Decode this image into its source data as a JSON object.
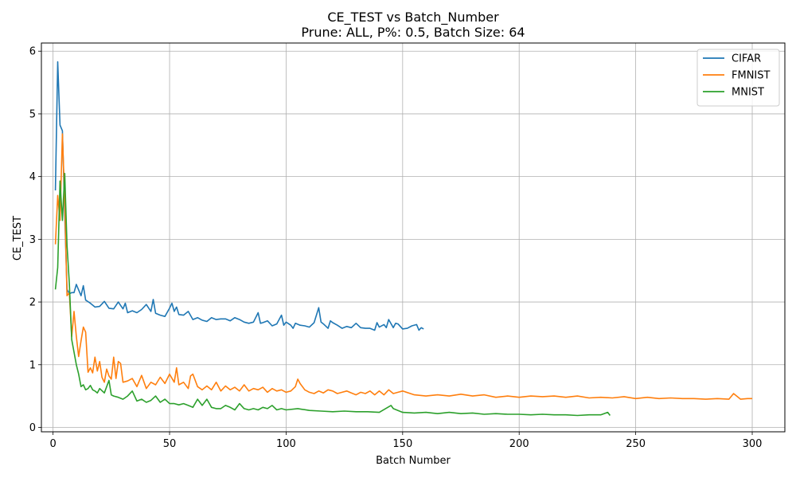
{
  "chart_data": {
    "type": "line",
    "title": "CE_TEST vs Batch_Number",
    "subtitle": "Prune: ALL, P%: 0.5, Batch Size: 64",
    "xlabel": "Batch Number",
    "ylabel": "CE_TEST",
    "xlim": [
      -5,
      314
    ],
    "ylim": [
      -0.07,
      6.13
    ],
    "xticks": [
      0,
      50,
      100,
      150,
      200,
      250,
      300
    ],
    "yticks": [
      0,
      1,
      2,
      3,
      4,
      5,
      6
    ],
    "grid": true,
    "legend_position": "top-right",
    "series": [
      {
        "name": "CIFAR",
        "color": "#1f77b4",
        "x": [
          1,
          2,
          3,
          4,
          5,
          6,
          7,
          8,
          9,
          10,
          12,
          13,
          14,
          16,
          18,
          20,
          22,
          24,
          26,
          28,
          30,
          31,
          32,
          34,
          36,
          38,
          40,
          42,
          43,
          44,
          46,
          48,
          50,
          51,
          52,
          53,
          54,
          56,
          58,
          60,
          62,
          64,
          66,
          68,
          70,
          72,
          74,
          76,
          78,
          80,
          82,
          84,
          86,
          88,
          89,
          90,
          92,
          94,
          96,
          98,
          99,
          100,
          102,
          103,
          104,
          106,
          108,
          110,
          112,
          114,
          115,
          116,
          118,
          119,
          120,
          122,
          124,
          126,
          128,
          130,
          132,
          134,
          136,
          138,
          139,
          140,
          142,
          143,
          144,
          146,
          147,
          148,
          150,
          152,
          154,
          156,
          157,
          158,
          159
        ],
        "values": [
          3.78,
          5.83,
          4.82,
          4.73,
          3.4,
          2.2,
          2.13,
          2.15,
          2.15,
          2.28,
          2.1,
          2.26,
          2.03,
          1.98,
          1.92,
          1.93,
          2.01,
          1.9,
          1.89,
          2.0,
          1.89,
          1.98,
          1.83,
          1.86,
          1.83,
          1.88,
          1.96,
          1.85,
          2.04,
          1.82,
          1.79,
          1.77,
          1.9,
          1.98,
          1.85,
          1.92,
          1.8,
          1.79,
          1.85,
          1.72,
          1.75,
          1.71,
          1.69,
          1.75,
          1.72,
          1.73,
          1.73,
          1.7,
          1.75,
          1.72,
          1.68,
          1.66,
          1.68,
          1.83,
          1.66,
          1.67,
          1.7,
          1.62,
          1.65,
          1.79,
          1.63,
          1.68,
          1.63,
          1.58,
          1.66,
          1.63,
          1.62,
          1.6,
          1.67,
          1.91,
          1.68,
          1.65,
          1.58,
          1.7,
          1.67,
          1.63,
          1.58,
          1.61,
          1.59,
          1.66,
          1.59,
          1.58,
          1.58,
          1.55,
          1.67,
          1.6,
          1.64,
          1.59,
          1.72,
          1.59,
          1.66,
          1.65,
          1.57,
          1.58,
          1.62,
          1.64,
          1.55,
          1.59,
          1.57
        ]
      },
      {
        "name": "FMNIST",
        "color": "#ff7f0e",
        "x": [
          1,
          2,
          3,
          4,
          5,
          6,
          7,
          8,
          9,
          10,
          11,
          12,
          13,
          14,
          15,
          16,
          17,
          18,
          19,
          20,
          21,
          22,
          23,
          24,
          25,
          26,
          27,
          28,
          29,
          30,
          32,
          34,
          36,
          38,
          40,
          42,
          44,
          46,
          48,
          50,
          52,
          53,
          54,
          56,
          58,
          59,
          60,
          62,
          64,
          66,
          68,
          70,
          72,
          74,
          76,
          78,
          80,
          82,
          84,
          86,
          88,
          90,
          92,
          94,
          96,
          98,
          100,
          102,
          104,
          105,
          106,
          108,
          110,
          112,
          114,
          116,
          118,
          120,
          122,
          124,
          126,
          128,
          130,
          132,
          134,
          136,
          138,
          140,
          142,
          144,
          146,
          148,
          150,
          155,
          160,
          165,
          170,
          175,
          180,
          185,
          190,
          195,
          200,
          205,
          210,
          215,
          220,
          225,
          230,
          235,
          240,
          245,
          250,
          255,
          260,
          265,
          270,
          275,
          280,
          285,
          290,
          292,
          295,
          298,
          300
        ],
        "values": [
          2.92,
          3.7,
          3.3,
          4.68,
          3.6,
          2.1,
          2.15,
          1.45,
          1.85,
          1.45,
          1.13,
          1.38,
          1.6,
          1.52,
          0.88,
          0.95,
          0.87,
          1.12,
          0.9,
          1.05,
          0.8,
          0.72,
          0.93,
          0.82,
          0.77,
          1.12,
          0.78,
          1.05,
          1.02,
          0.72,
          0.74,
          0.78,
          0.65,
          0.83,
          0.62,
          0.72,
          0.68,
          0.8,
          0.7,
          0.85,
          0.72,
          0.95,
          0.68,
          0.72,
          0.62,
          0.82,
          0.85,
          0.65,
          0.6,
          0.66,
          0.6,
          0.72,
          0.58,
          0.66,
          0.6,
          0.64,
          0.58,
          0.68,
          0.58,
          0.62,
          0.6,
          0.64,
          0.56,
          0.62,
          0.58,
          0.6,
          0.56,
          0.58,
          0.65,
          0.77,
          0.7,
          0.6,
          0.56,
          0.54,
          0.58,
          0.55,
          0.6,
          0.58,
          0.54,
          0.56,
          0.58,
          0.55,
          0.52,
          0.56,
          0.54,
          0.58,
          0.52,
          0.58,
          0.52,
          0.6,
          0.54,
          0.56,
          0.58,
          0.52,
          0.5,
          0.52,
          0.5,
          0.53,
          0.5,
          0.52,
          0.48,
          0.5,
          0.48,
          0.5,
          0.49,
          0.5,
          0.48,
          0.5,
          0.47,
          0.48,
          0.47,
          0.49,
          0.46,
          0.48,
          0.46,
          0.47,
          0.46,
          0.46,
          0.45,
          0.46,
          0.45,
          0.54,
          0.45,
          0.46,
          0.46
        ]
      },
      {
        "name": "MNIST",
        "color": "#2ca02c",
        "x": [
          1,
          2,
          3,
          4,
          5,
          6,
          7,
          8,
          9,
          10,
          11,
          12,
          13,
          14,
          15,
          16,
          17,
          18,
          19,
          20,
          22,
          24,
          25,
          26,
          28,
          30,
          32,
          34,
          36,
          38,
          40,
          42,
          44,
          46,
          48,
          50,
          52,
          54,
          56,
          58,
          60,
          62,
          64,
          66,
          68,
          70,
          72,
          74,
          76,
          78,
          80,
          82,
          84,
          86,
          88,
          90,
          92,
          94,
          96,
          98,
          100,
          105,
          110,
          115,
          120,
          125,
          130,
          135,
          140,
          145,
          146,
          150,
          155,
          160,
          165,
          170,
          175,
          180,
          185,
          190,
          195,
          200,
          205,
          210,
          215,
          220,
          225,
          230,
          235,
          238,
          239
        ],
        "values": [
          2.2,
          2.55,
          3.93,
          3.3,
          4.05,
          2.9,
          2.3,
          1.4,
          1.2,
          1.0,
          0.85,
          0.65,
          0.68,
          0.6,
          0.62,
          0.67,
          0.6,
          0.58,
          0.55,
          0.62,
          0.55,
          0.75,
          0.52,
          0.5,
          0.48,
          0.45,
          0.5,
          0.58,
          0.42,
          0.45,
          0.4,
          0.43,
          0.5,
          0.4,
          0.45,
          0.38,
          0.38,
          0.36,
          0.38,
          0.35,
          0.32,
          0.45,
          0.35,
          0.45,
          0.32,
          0.3,
          0.3,
          0.35,
          0.32,
          0.28,
          0.38,
          0.3,
          0.28,
          0.3,
          0.28,
          0.32,
          0.3,
          0.35,
          0.28,
          0.3,
          0.28,
          0.3,
          0.27,
          0.26,
          0.25,
          0.26,
          0.25,
          0.25,
          0.24,
          0.35,
          0.3,
          0.24,
          0.23,
          0.24,
          0.22,
          0.24,
          0.22,
          0.23,
          0.21,
          0.22,
          0.21,
          0.21,
          0.2,
          0.21,
          0.2,
          0.2,
          0.19,
          0.2,
          0.2,
          0.24,
          0.19
        ]
      }
    ]
  }
}
